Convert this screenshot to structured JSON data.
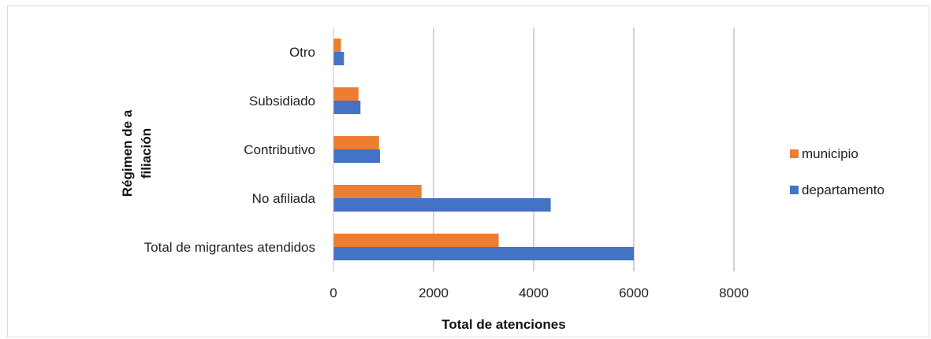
{
  "chart_data": {
    "type": "bar",
    "orientation": "horizontal",
    "categories": [
      "Otro",
      "Subsidiado",
      "Contributivo",
      "No afiliada",
      "Total de migrantes atendidos"
    ],
    "series": [
      {
        "name": "municipio",
        "color": "#ED7D31",
        "values": [
          150,
          500,
          910,
          1760,
          3300
        ]
      },
      {
        "name": "departamento",
        "color": "#4472C4",
        "values": [
          210,
          540,
          930,
          4340,
          6000
        ]
      }
    ],
    "xlabel": "Total de atenciones",
    "ylabel_lines": [
      "Régimen de a",
      "filiación"
    ],
    "xlim": [
      0,
      8000
    ],
    "xticks": [
      "0",
      "2000",
      "4000",
      "6000",
      "8000"
    ],
    "grid": "vertical",
    "legend_position": "right"
  }
}
